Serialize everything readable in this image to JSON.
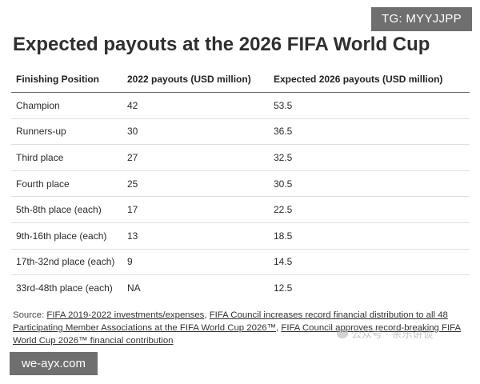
{
  "badges": {
    "top_right": "TG: MYYJJPP",
    "bottom_left": "we-ayx.com"
  },
  "title": "Expected payouts at the 2026 FIFA World Cup",
  "table": {
    "headers": [
      "Finishing Position",
      "2022 payouts (USD million)",
      "Expected 2026 payouts (USD million)"
    ],
    "rows": [
      [
        "Champion",
        "42",
        "53.5"
      ],
      [
        "Runners-up",
        "30",
        "36.5"
      ],
      [
        "Third place",
        "27",
        "32.5"
      ],
      [
        "Fourth place",
        "25",
        "30.5"
      ],
      [
        "5th-8th place (each)",
        "17",
        "22.5"
      ],
      [
        "9th-16th place (each)",
        "13",
        "18.5"
      ],
      [
        "17th-32nd place (each)",
        "9",
        "14.5"
      ],
      [
        "33rd-48th place (each)",
        "NA",
        "12.5"
      ]
    ]
  },
  "source": {
    "prefix": "Source: ",
    "link1": "FIFA 2019-2022 investments/expenses",
    "sep1": ", ",
    "link2": "FIFA Council increases record financial distribution to all 48 Participating Member Associations at the FIFA World Cup 2026™",
    "sep2": ", ",
    "link3": "FIFA Council approves record-breaking FIFA World Cup 2026™ financial contribution"
  },
  "watermark": {
    "text": "公众号 · 亲乐讲谈",
    "icon": "wechat-icon"
  }
}
